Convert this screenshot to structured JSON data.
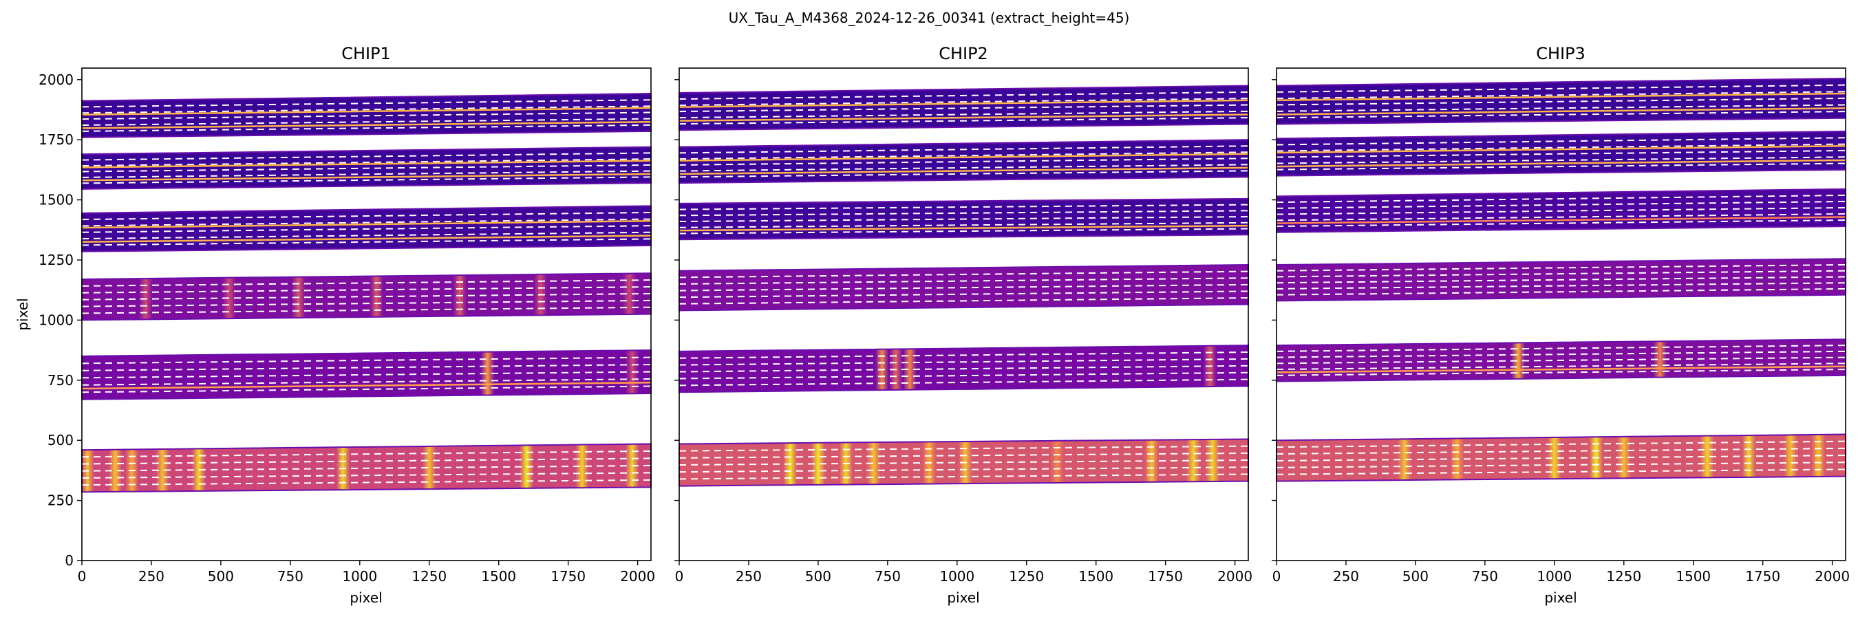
{
  "figure": {
    "suptitle": "UX_Tau_A_M4368_2024-12-26_00341  (extract_height=45)"
  },
  "chart_data": [
    {
      "type": "heatmap",
      "title": "CHIP1",
      "xlabel": "pixel",
      "ylabel": "pixel",
      "xlim": [
        0,
        2048
      ],
      "ylim": [
        0,
        2048
      ],
      "xticks": [
        "0",
        "250",
        "500",
        "750",
        "1000",
        "1250",
        "1500",
        "1750",
        "2000"
      ],
      "yticks": [
        "0",
        "250",
        "500",
        "750",
        "1000",
        "1250",
        "1500",
        "1750",
        "2000"
      ],
      "grid": false,
      "orders": [
        {
          "y_bottom_left": 1760,
          "y_top_left": 1912,
          "y_bottom_right": 1785,
          "y_top_right": 1942,
          "mean": 0.12,
          "bright": [],
          "trace_colors": [
            "#ffb347",
            "#ffb347"
          ]
        },
        {
          "y_bottom_left": 1545,
          "y_top_left": 1690,
          "y_bottom_right": 1570,
          "y_top_right": 1720,
          "mean": 0.12,
          "bright": [],
          "trace_colors": [
            "#ffb347",
            "#ffb347"
          ]
        },
        {
          "y_bottom_left": 1285,
          "y_top_left": 1445,
          "y_bottom_right": 1310,
          "y_top_right": 1475,
          "mean": 0.14,
          "bright": [],
          "trace_colors": [
            "#ffb347",
            "#ffb347"
          ]
        },
        {
          "y_bottom_left": 1000,
          "y_top_left": 1170,
          "y_bottom_right": 1025,
          "y_top_right": 1195,
          "mean": 0.3,
          "bright": [
            [
              230,
              0.5
            ],
            [
              530,
              0.5
            ],
            [
              780,
              0.55
            ],
            [
              1060,
              0.55
            ],
            [
              1360,
              0.55
            ],
            [
              1650,
              0.5
            ],
            [
              1970,
              0.5
            ]
          ],
          "trace_colors": []
        },
        {
          "y_bottom_left": 670,
          "y_top_left": 850,
          "y_bottom_right": 695,
          "y_top_right": 875,
          "mean": 0.28,
          "bright": [
            [
              1460,
              0.75
            ],
            [
              1980,
              0.5
            ]
          ],
          "trace_colors": [
            "#ff9f4a"
          ]
        },
        {
          "y_bottom_left": 285,
          "y_top_left": 460,
          "y_bottom_right": 305,
          "y_top_right": 485,
          "mean": 0.5,
          "bright": [
            [
              20,
              0.85
            ],
            [
              120,
              0.85
            ],
            [
              180,
              0.8
            ],
            [
              290,
              0.85
            ],
            [
              420,
              0.9
            ],
            [
              940,
              0.9
            ],
            [
              1250,
              0.85
            ],
            [
              1600,
              0.95
            ],
            [
              1800,
              0.9
            ],
            [
              1980,
              0.9
            ]
          ],
          "trace_colors": []
        }
      ]
    },
    {
      "type": "heatmap",
      "title": "CHIP2",
      "xlabel": "pixel",
      "ylabel": "",
      "xlim": [
        0,
        2048
      ],
      "ylim": [
        0,
        2048
      ],
      "xticks": [
        "0",
        "250",
        "500",
        "750",
        "1000",
        "1250",
        "1500",
        "1750",
        "2000"
      ],
      "yticks": [],
      "grid": false,
      "orders": [
        {
          "y_bottom_left": 1790,
          "y_top_left": 1945,
          "y_bottom_right": 1815,
          "y_top_right": 1975,
          "mean": 0.12,
          "bright": [],
          "trace_colors": [
            "#ffb347",
            "#ffb347"
          ]
        },
        {
          "y_bottom_left": 1570,
          "y_top_left": 1720,
          "y_bottom_right": 1595,
          "y_top_right": 1750,
          "mean": 0.12,
          "bright": [],
          "trace_colors": [
            "#ffb347",
            "#ffb347"
          ]
        },
        {
          "y_bottom_left": 1335,
          "y_top_left": 1485,
          "y_bottom_right": 1355,
          "y_top_right": 1505,
          "mean": 0.14,
          "bright": [],
          "trace_colors": [
            "#ffb347"
          ]
        },
        {
          "y_bottom_left": 1040,
          "y_top_left": 1205,
          "y_bottom_right": 1065,
          "y_top_right": 1230,
          "mean": 0.3,
          "bright": [],
          "trace_colors": []
        },
        {
          "y_bottom_left": 700,
          "y_top_left": 870,
          "y_bottom_right": 725,
          "y_top_right": 895,
          "mean": 0.28,
          "bright": [
            [
              730,
              0.7
            ],
            [
              780,
              0.6
            ],
            [
              830,
              0.7
            ],
            [
              1910,
              0.55
            ]
          ],
          "trace_colors": []
        },
        {
          "y_bottom_left": 310,
          "y_top_left": 485,
          "y_bottom_right": 330,
          "y_top_right": 505,
          "mean": 0.55,
          "bright": [
            [
              400,
              0.95
            ],
            [
              500,
              0.95
            ],
            [
              600,
              0.9
            ],
            [
              700,
              0.85
            ],
            [
              900,
              0.8
            ],
            [
              1030,
              0.85
            ],
            [
              1360,
              0.7
            ],
            [
              1700,
              0.85
            ],
            [
              1850,
              0.9
            ],
            [
              1920,
              0.9
            ]
          ],
          "trace_colors": []
        }
      ]
    },
    {
      "type": "heatmap",
      "title": "CHIP3",
      "xlabel": "pixel",
      "ylabel": "",
      "xlim": [
        0,
        2048
      ],
      "ylim": [
        0,
        2048
      ],
      "xticks": [
        "0",
        "250",
        "500",
        "750",
        "1000",
        "1250",
        "1500",
        "1750",
        "2000"
      ],
      "yticks": [],
      "grid": false,
      "orders": [
        {
          "y_bottom_left": 1815,
          "y_top_left": 1975,
          "y_bottom_right": 1840,
          "y_top_right": 2005,
          "mean": 0.12,
          "bright": [],
          "trace_colors": [
            "#ffb347",
            "#ffb347"
          ]
        },
        {
          "y_bottom_left": 1600,
          "y_top_left": 1755,
          "y_bottom_right": 1625,
          "y_top_right": 1785,
          "mean": 0.13,
          "bright": [],
          "trace_colors": [
            "#ffb347",
            "#ffb347"
          ]
        },
        {
          "y_bottom_left": 1365,
          "y_top_left": 1515,
          "y_bottom_right": 1390,
          "y_top_right": 1545,
          "mean": 0.17,
          "bright": [],
          "trace_colors": [
            "#ff7f50"
          ]
        },
        {
          "y_bottom_left": 1080,
          "y_top_left": 1230,
          "y_bottom_right": 1105,
          "y_top_right": 1255,
          "mean": 0.3,
          "bright": [],
          "trace_colors": []
        },
        {
          "y_bottom_left": 745,
          "y_top_left": 895,
          "y_bottom_right": 770,
          "y_top_right": 920,
          "mean": 0.3,
          "bright": [
            [
              870,
              0.8
            ],
            [
              1380,
              0.7
            ]
          ],
          "trace_colors": [
            "#ff9f4a"
          ]
        },
        {
          "y_bottom_left": 330,
          "y_top_left": 500,
          "y_bottom_right": 350,
          "y_top_right": 525,
          "mean": 0.55,
          "bright": [
            [
              460,
              0.85
            ],
            [
              650,
              0.8
            ],
            [
              1000,
              0.9
            ],
            [
              1150,
              0.95
            ],
            [
              1250,
              0.85
            ],
            [
              1550,
              0.9
            ],
            [
              1700,
              0.9
            ],
            [
              1850,
              0.85
            ],
            [
              1950,
              0.85
            ]
          ],
          "trace_colors": []
        }
      ]
    }
  ],
  "colors": {
    "stripe_dash": "#ffffff",
    "order_edge": "#6a0dad"
  }
}
